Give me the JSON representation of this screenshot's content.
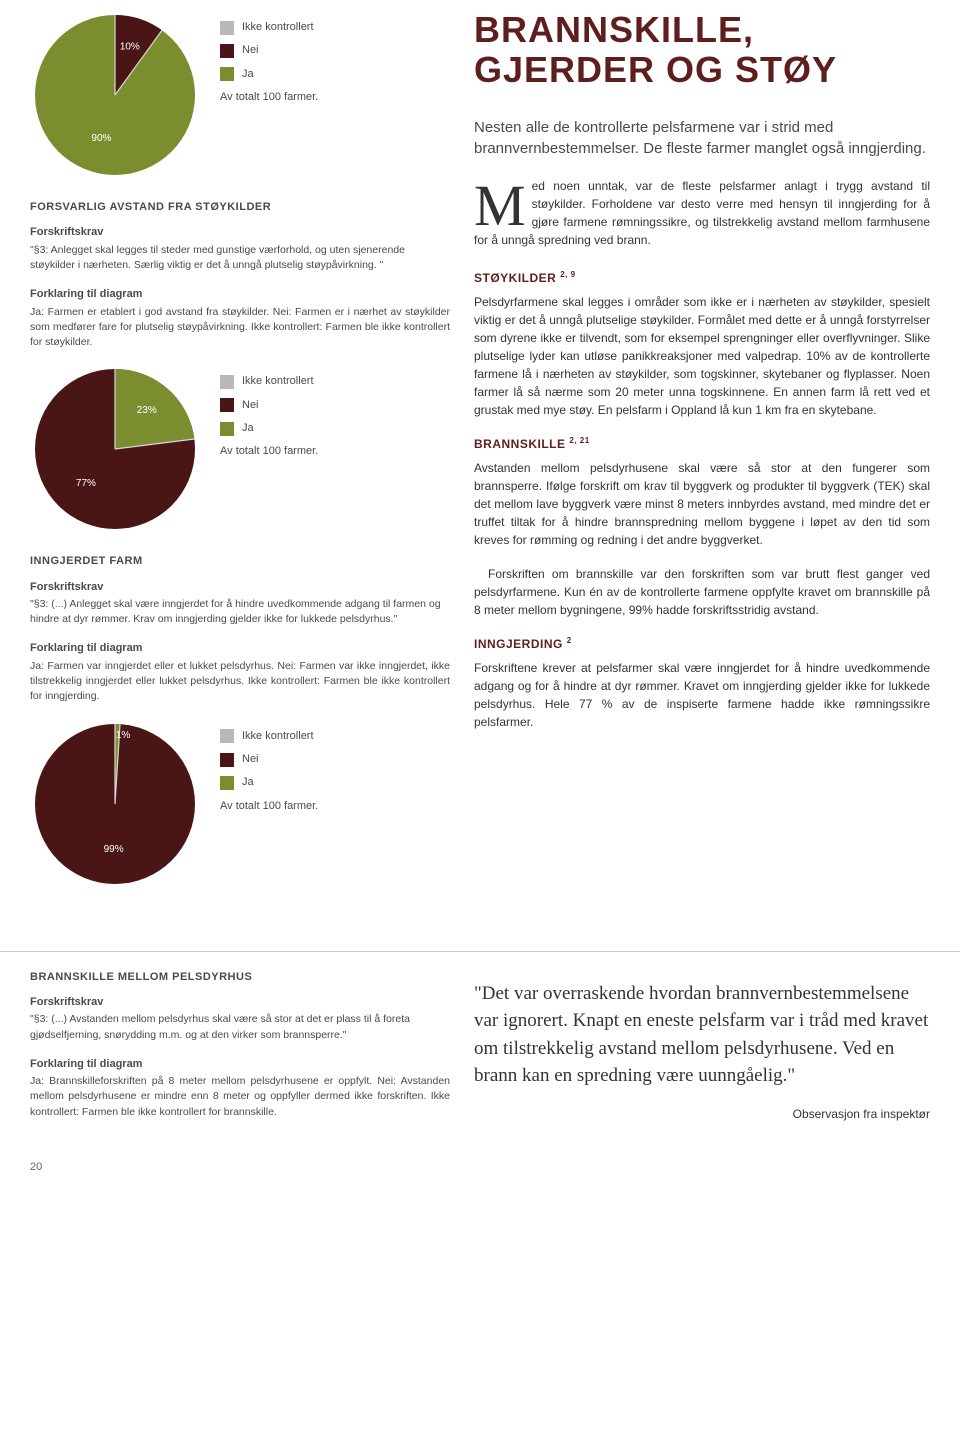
{
  "page_number": "20",
  "main_title": "BRANNSKILLE, GJERDER OG STØY",
  "intro": "Nesten alle de kontrollerte pelsfarmene var i strid med brannvernbestemmelser. De fleste farmer manglet også inngjerding.",
  "dropcap_letter": "M",
  "dropcap_text": "ed noen unntak, var de fleste pelsfarmer anlagt i trygg avstand til støykilder. Forholdene var desto verre med hensyn til inngjerding for å gjøre farmene rømningssikre, og tilstrekkelig avstand mellom farmhusene for å unngå spredning ved brann.",
  "legend": {
    "ikke_kontrollert": "Ikke kontrollert",
    "nei": "Nei",
    "ja": "Ja",
    "caption": "Av totalt 100 farmer.",
    "colors": {
      "ikke_kontrollert": "#b8b8b8",
      "nei": "#4a1515",
      "ja": "#7a8e2f"
    }
  },
  "chart1": {
    "type": "pie",
    "title": "FORSVARLIG AVSTAND FRA STØYKILDER",
    "size": 170,
    "label_a": "10%",
    "label_b": "90%",
    "slice_a_deg": 36,
    "colors": {
      "slice_a": "#4a1515",
      "slice_b": "#7a8e2f",
      "line": "#d9d9d9"
    },
    "forskrift_heading": "Forskriftskrav",
    "forskrift_text": "\"§3: Anlegget skal legges til steder med gunstige værforhold, og uten sjenerende støykilder i nærheten. Særlig viktig er det å unngå plutselig støypåvirkning. \"",
    "forklaring_heading": "Forklaring til diagram",
    "forklaring_text": "Ja: Farmen er etablert i god avstand fra støykilder. Nei: Farmen er i nærhet av støykilder som medfører fare for plutselig støypåvirkning. Ikke kontrollert: Farmen ble ikke kontrollert for støykilder."
  },
  "chart2": {
    "type": "pie",
    "title": "INNGJERDET FARM",
    "size": 170,
    "label_a": "23%",
    "label_b": "77%",
    "slice_a_deg": 82.8,
    "colors": {
      "slice_a": "#7a8e2f",
      "slice_b": "#4a1515",
      "line": "#d9d9d9"
    },
    "forskrift_heading": "Forskriftskrav",
    "forskrift_text": "\"§3: (...) Anlegget skal være inngjerdet for å hindre uvedkommende adgang til farmen og hindre at dyr rømmer. Krav om inngjerding gjelder ikke for lukkede pelsdyrhus.\"",
    "forklaring_heading": "Forklaring til diagram",
    "forklaring_text": "Ja: Farmen var inngjerdet eller et lukket pelsdyrhus. Nei: Farmen var ikke inngjerdet, ikke tilstrekkelig inngjerdet eller lukket pelsdyrhus. Ikke kontrollert: Farmen ble ikke kontrollert for inngjerding."
  },
  "chart3": {
    "type": "pie",
    "title": "BRANNSKILLE MELLOM PELSDYRHUS",
    "size": 170,
    "label_a": "1%",
    "label_b": "99%",
    "slice_a_deg": 3.6,
    "colors": {
      "slice_a": "#7a8e2f",
      "slice_b": "#4a1515",
      "line": "#d9d9d9"
    },
    "forskrift_heading": "Forskriftskrav",
    "forskrift_text": "\"§3: (...) Avstanden mellom pelsdyrhus skal være så stor at det er plass til å foreta gjødselfjerning, snørydding m.m. og at den virker som brannsperre.\"",
    "forklaring_heading": "Forklaring til diagram",
    "forklaring_text": "Ja: Brannskilleforskriften på 8 meter mellom pelsdyrhusene er oppfylt. Nei: Avstanden mellom pelsdyrhusene er mindre enn 8 meter og oppfyller dermed ikke forskriften. Ikke kontrollert: Farmen ble ikke kontrollert for brannskille."
  },
  "r1": {
    "title": "STØYKILDER",
    "ref": "2, 9",
    "body": "Pelsdyrfarmene skal legges i områder som ikke er i nærheten av støykilder, spesielt viktig er det å unngå plutselige støykilder. Formålet med dette er å unngå forstyrrelser som dyrene ikke er tilvendt, som for eksempel sprengninger eller overflyvninger. Slike plutselige lyder kan utløse panikkreaksjoner med valpedrap. 10% av de kontrollerte farmene lå i nærheten av støykilder, som togskinner, skytebaner og flyplasser. Noen farmer lå så nærme som 20 meter unna togskinnene. En annen farm lå rett ved et grustak med mye støy. En pelsfarm i Oppland lå kun 1 km fra en skytebane."
  },
  "r2": {
    "title": "BRANNSKILLE",
    "ref": "2, 21",
    "body1": "Avstanden mellom pelsdyrhusene skal være så stor at den fungerer som brannsperre. Ifølge forskrift om krav til byggverk og produkter til byggverk (TEK) skal det mellom lave byggverk være minst 8 meters innbyrdes avstand, med mindre det er truffet tiltak for å hindre brannspredning mellom byggene i løpet av den tid som kreves for rømming og redning i det andre byggverket.",
    "body2": "Forskriften om brannskille var den forskriften som var brutt flest ganger ved pelsdyrfarmene. Kun én av de kontrollerte farmene oppfylte kravet om brannskille på 8 meter mellom bygningene, 99% hadde forskriftsstridig avstand."
  },
  "r3": {
    "title": "INNGJERDING",
    "ref": "2",
    "body": "Forskriftene krever at pelsfarmer skal være inngjerdet for å hindre uvedkommende adgang og for å hindre at dyr rømmer. Kravet om inngjerding gjelder ikke for lukkede pelsdyrhus. Hele 77 % av de inspiserte farmene hadde ikke rømningssikre pelsfarmer."
  },
  "quote": "\"Det var overraskende hvordan brannvernbestemmelsene var ignorert. Knapt en eneste pelsfarm var i tråd med kravet om tilstrekkelig avstand mellom pelsdyrhusene. Ved en brann kan en spredning være uunngåelig.\"",
  "quote_attrib": "Observasjon fra inspektør"
}
